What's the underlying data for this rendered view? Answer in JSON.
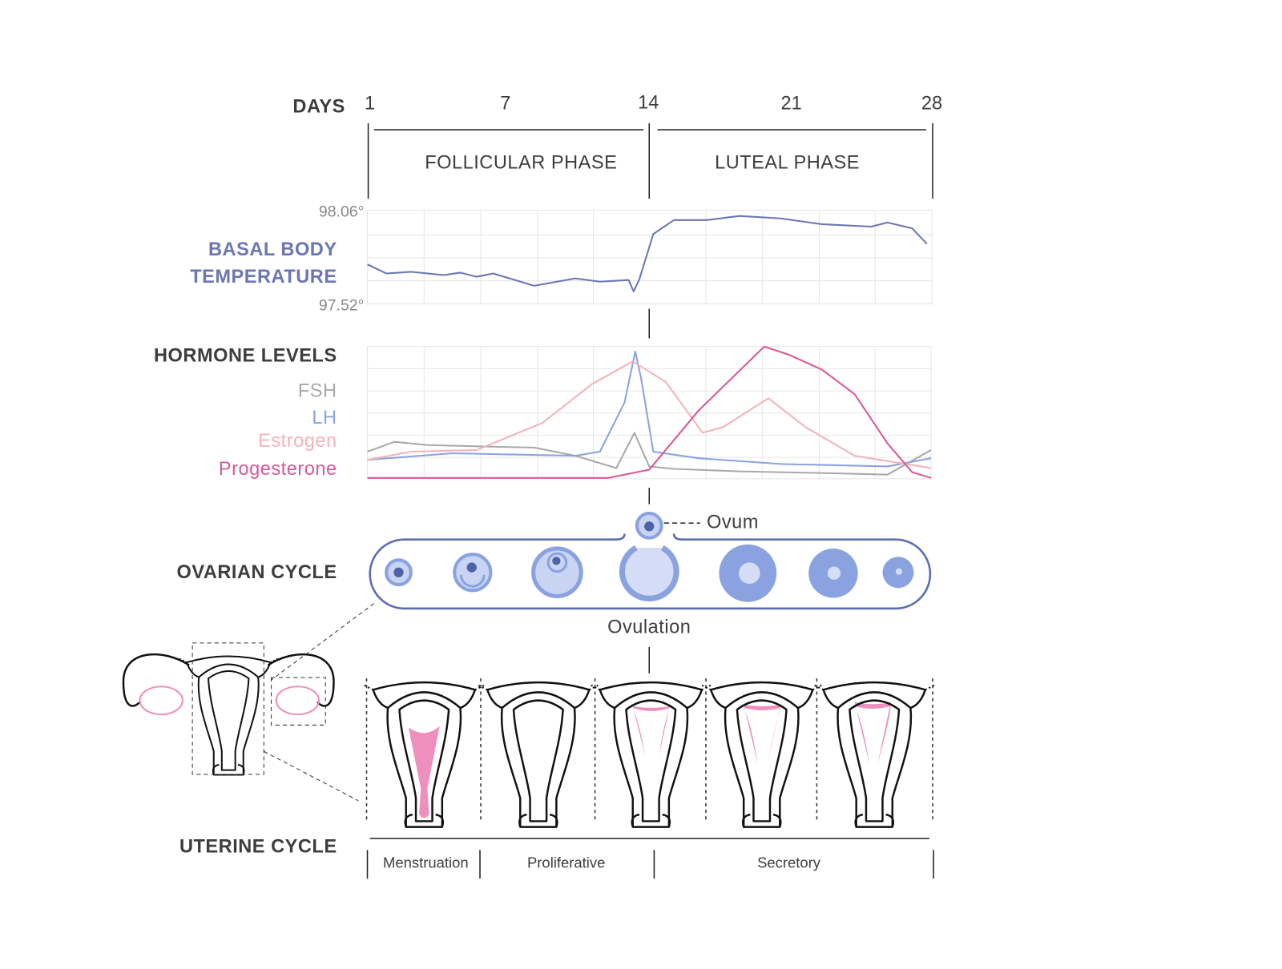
{
  "days": {
    "label": "DAYS",
    "ticks": [
      "1",
      "7",
      "14",
      "21",
      "28"
    ]
  },
  "phases": [
    "FOLLICULAR PHASE",
    "LUTEAL PHASE"
  ],
  "temperature": {
    "label_lines": [
      "BASAL BODY",
      "TEMPERATURE"
    ],
    "max": "98.06°",
    "min": "97.52°",
    "color": "#6b76b3"
  },
  "hormones": {
    "title": "HORMONE LEVELS",
    "legend": [
      {
        "name": "FSH",
        "color": "#a9a9a9"
      },
      {
        "name": "LH",
        "color": "#8aa3e0"
      },
      {
        "name": "Estrogen",
        "color": "#f2b3bb"
      },
      {
        "name": "Progesterone",
        "color": "#d9589a"
      }
    ]
  },
  "ovarian": {
    "title": "OVARIAN CYCLE",
    "ovum": "Ovum",
    "ovulation": "Ovulation"
  },
  "uterine": {
    "title": "UTERINE CYCLE",
    "phases": [
      "Menstruation",
      "Proliferative",
      "Secretory"
    ]
  }
}
